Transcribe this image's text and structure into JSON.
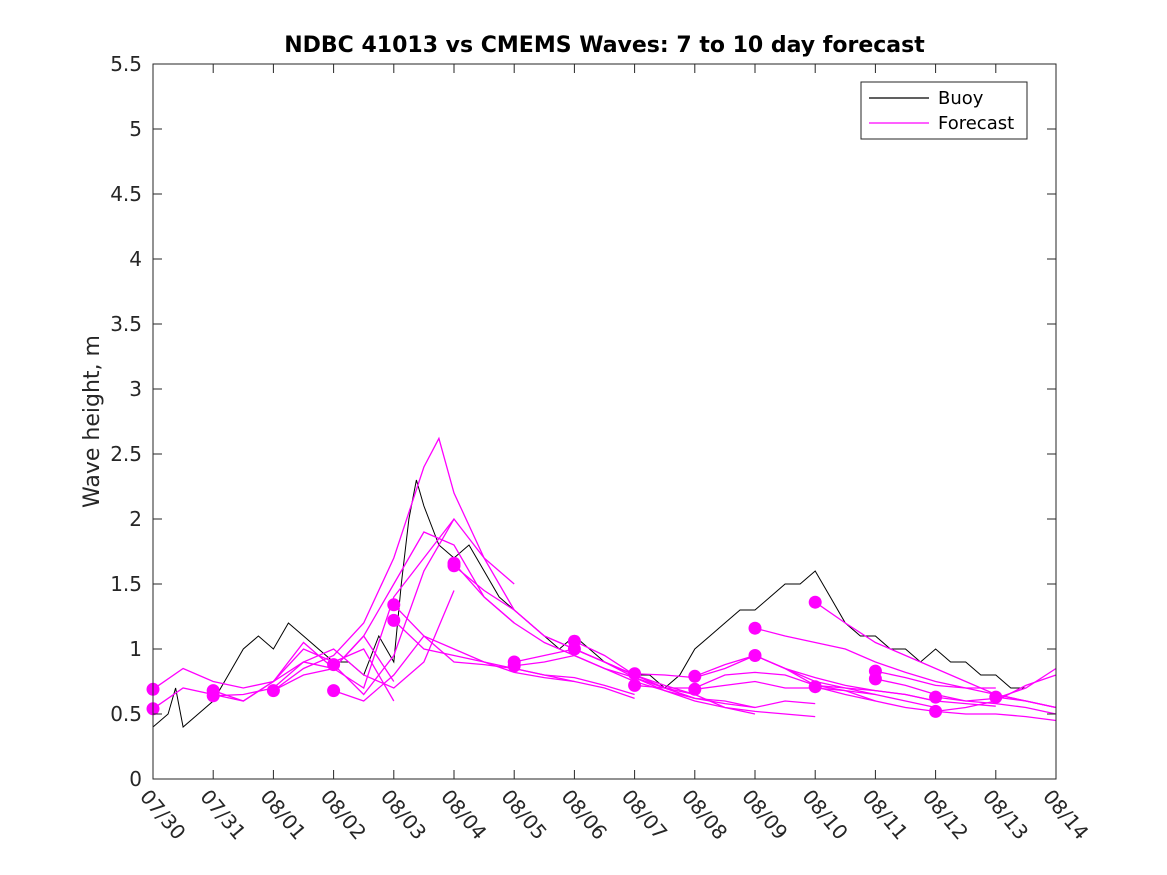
{
  "chart_data": {
    "type": "line",
    "title": "NDBC 41013 vs CMEMS Waves: 7 to 10 day forecast",
    "xlabel": "",
    "ylabel": "Wave height, m",
    "xlim": [
      "07/30",
      "08/14"
    ],
    "ylim": [
      0,
      5.5
    ],
    "x_tick_labels": [
      "07/30",
      "07/31",
      "08/01",
      "08/02",
      "08/03",
      "08/04",
      "08/05",
      "08/06",
      "08/07",
      "08/08",
      "08/09",
      "08/10",
      "08/11",
      "08/12",
      "08/13",
      "08/14"
    ],
    "y_tick_labels": [
      "0",
      "0.5",
      "1",
      "1.5",
      "2",
      "2.5",
      "3",
      "3.5",
      "4",
      "4.5",
      "5",
      "5.5"
    ],
    "y_ticks": [
      0,
      0.5,
      1,
      1.5,
      2,
      2.5,
      3,
      3.5,
      4,
      4.5,
      5,
      5.5
    ],
    "grid": false,
    "legend": {
      "position": "top-right",
      "entries": [
        "Buoy",
        "Forecast"
      ]
    },
    "colors": {
      "buoy": "#000000",
      "forecast": "#ff00ff"
    },
    "series": [
      {
        "name": "Buoy",
        "x": [
          "07/30 00:00",
          "07/30 06:00",
          "07/30 09:00",
          "07/30 12:00",
          "07/30 18:00",
          "07/31 00:00",
          "07/31 06:00",
          "07/31 12:00",
          "07/31 18:00",
          "08/01 00:00",
          "08/01 06:00",
          "08/01 12:00",
          "08/01 18:00",
          "08/02 00:00",
          "08/02 06:00",
          "08/02 12:00",
          "08/02 18:00",
          "08/03 00:00",
          "08/03 03:00",
          "08/03 06:00",
          "08/03 09:00",
          "08/03 12:00",
          "08/03 18:00",
          "08/04 00:00",
          "08/04 06:00",
          "08/04 12:00",
          "08/04 18:00",
          "08/05 00:00",
          "08/05 06:00",
          "08/05 12:00",
          "08/05 18:00",
          "08/06 00:00",
          "08/06 06:00",
          "08/06 12:00",
          "08/06 18:00",
          "08/07 00:00",
          "08/07 06:00",
          "08/07 12:00",
          "08/07 18:00",
          "08/08 00:00",
          "08/08 06:00",
          "08/08 12:00",
          "08/08 18:00",
          "08/09 00:00",
          "08/09 06:00",
          "08/09 12:00",
          "08/09 18:00",
          "08/10 00:00",
          "08/10 06:00",
          "08/10 12:00",
          "08/10 18:00",
          "08/11 00:00",
          "08/11 06:00",
          "08/11 12:00",
          "08/11 18:00",
          "08/12 00:00",
          "08/12 06:00",
          "08/12 12:00",
          "08/12 18:00",
          "08/13 00:00",
          "08/13 06:00",
          "08/13 12:00"
        ],
        "y": [
          0.4,
          0.5,
          0.7,
          0.4,
          0.5,
          0.6,
          0.8,
          1.0,
          1.1,
          1.0,
          1.2,
          1.1,
          1.0,
          0.9,
          0.9,
          0.8,
          1.1,
          0.9,
          1.5,
          2.0,
          2.3,
          2.1,
          1.8,
          1.7,
          1.8,
          1.6,
          1.4,
          1.3,
          1.2,
          1.1,
          1.0,
          1.1,
          1.0,
          0.9,
          0.85,
          0.8,
          0.8,
          0.7,
          0.8,
          1.0,
          1.1,
          1.2,
          1.3,
          1.3,
          1.4,
          1.5,
          1.5,
          1.6,
          1.4,
          1.2,
          1.1,
          1.1,
          1.0,
          1.0,
          0.9,
          1.0,
          0.9,
          0.9,
          0.8,
          0.8,
          0.7,
          0.7
        ]
      },
      {
        "name": "Forecast",
        "runs": [
          {
            "x": [
              "07/30 00:00",
              "07/30 12:00",
              "07/31 00:00",
              "07/31 12:00",
              "08/01 00:00",
              "08/01 12:00",
              "08/02 00:00",
              "08/02 12:00",
              "08/03 00:00"
            ],
            "y": [
              0.69,
              0.85,
              0.75,
              0.7,
              0.75,
              0.9,
              0.85,
              1.1,
              0.75
            ]
          },
          {
            "x": [
              "07/30 00:00",
              "07/30 12:00",
              "07/31 00:00",
              "07/31 12:00",
              "08/01 00:00",
              "08/01 12:00",
              "08/02 00:00",
              "08/02 12:00",
              "08/03 00:00"
            ],
            "y": [
              0.54,
              0.7,
              0.65,
              0.6,
              0.75,
              1.0,
              0.9,
              1.0,
              0.6
            ]
          },
          {
            "x": [
              "07/31 00:00",
              "07/31 12:00",
              "08/01 00:00",
              "08/01 12:00",
              "08/02 00:00",
              "08/02 12:00",
              "08/03 00:00",
              "08/03 12:00",
              "08/04 00:00"
            ],
            "y": [
              0.68,
              0.6,
              0.75,
              1.05,
              0.85,
              0.7,
              1.4,
              1.7,
              2.0
            ]
          },
          {
            "x": [
              "07/31 00:00",
              "07/31 12:00",
              "08/01 00:00",
              "08/01 12:00",
              "08/02 00:00",
              "08/02 12:00",
              "08/03 00:00",
              "08/03 12:00",
              "08/04 00:00"
            ],
            "y": [
              0.64,
              0.65,
              0.7,
              0.9,
              1.0,
              0.8,
              0.7,
              0.9,
              1.45
            ]
          },
          {
            "x": [
              "08/01 00:00",
              "08/01 12:00",
              "08/02 00:00",
              "08/02 12:00",
              "08/03 00:00",
              "08/03 12:00",
              "08/03 18:00",
              "08/04 00:00",
              "08/04 12:00",
              "08/05 00:00"
            ],
            "y": [
              0.68,
              0.85,
              0.95,
              1.2,
              1.7,
              2.4,
              2.62,
              2.2,
              1.7,
              1.5
            ]
          },
          {
            "x": [
              "08/01 00:00",
              "08/01 12:00",
              "08/02 00:00",
              "08/02 12:00",
              "08/03 00:00",
              "08/03 12:00",
              "08/04 00:00",
              "08/04 12:00",
              "08/05 00:00"
            ],
            "y": [
              0.68,
              0.8,
              0.85,
              1.1,
              1.5,
              1.9,
              1.8,
              1.4,
              1.2
            ]
          },
          {
            "x": [
              "08/02 00:00",
              "08/02 12:00",
              "08/03 00:00",
              "08/03 12:00",
              "08/04 00:00",
              "08/04 12:00",
              "08/05 00:00",
              "08/05 12:00",
              "08/06 00:00"
            ],
            "y": [
              0.88,
              0.65,
              0.95,
              1.6,
              2.0,
              1.7,
              1.3,
              1.1,
              1.0
            ]
          },
          {
            "x": [
              "08/02 00:00",
              "08/02 12:00",
              "08/03 00:00",
              "08/03 12:00",
              "08/04 00:00",
              "08/04 12:00",
              "08/05 00:00",
              "08/05 12:00",
              "08/06 00:00"
            ],
            "y": [
              0.68,
              0.6,
              0.8,
              1.1,
              1.0,
              0.9,
              0.85,
              0.8,
              0.75
            ]
          },
          {
            "x": [
              "08/03 00:00",
              "08/03 12:00",
              "08/04 00:00",
              "08/04 12:00",
              "08/05 00:00",
              "08/05 12:00",
              "08/06 00:00",
              "08/06 12:00",
              "08/07 00:00"
            ],
            "y": [
              1.34,
              1.1,
              0.9,
              0.88,
              0.85,
              0.8,
              0.78,
              0.72,
              0.65
            ]
          },
          {
            "x": [
              "08/03 00:00",
              "08/03 12:00",
              "08/04 00:00",
              "08/04 12:00",
              "08/05 00:00",
              "08/05 12:00",
              "08/06 00:00",
              "08/06 12:00",
              "08/07 00:00"
            ],
            "y": [
              1.22,
              1.0,
              0.95,
              0.9,
              0.82,
              0.78,
              0.75,
              0.7,
              0.62
            ]
          },
          {
            "x": [
              "08/04 00:00",
              "08/04 12:00",
              "08/05 00:00",
              "08/05 12:00",
              "08/06 00:00",
              "08/06 12:00",
              "08/07 00:00",
              "08/07 12:00",
              "08/08 00:00"
            ],
            "y": [
              1.66,
              1.4,
              1.2,
              1.05,
              0.95,
              0.85,
              0.78,
              0.7,
              0.62
            ]
          },
          {
            "x": [
              "08/04 00:00",
              "08/04 12:00",
              "08/05 00:00",
              "08/05 12:00",
              "08/06 00:00",
              "08/06 12:00",
              "08/07 00:00",
              "08/07 12:00",
              "08/08 00:00"
            ],
            "y": [
              1.64,
              1.45,
              1.3,
              1.1,
              1.0,
              0.9,
              0.8,
              0.72,
              0.65
            ]
          },
          {
            "x": [
              "08/05 00:00",
              "08/05 12:00",
              "08/06 00:00",
              "08/06 12:00",
              "08/07 00:00",
              "08/07 12:00",
              "08/08 00:00",
              "08/08 12:00",
              "08/09 00:00"
            ],
            "y": [
              0.9,
              0.95,
              1.0,
              0.9,
              0.8,
              0.7,
              0.65,
              0.55,
              0.5
            ]
          },
          {
            "x": [
              "08/05 00:00",
              "08/05 12:00",
              "08/06 00:00",
              "08/06 12:00",
              "08/07 00:00",
              "08/07 12:00",
              "08/08 00:00",
              "08/08 12:00",
              "08/09 00:00"
            ],
            "y": [
              0.87,
              0.9,
              0.95,
              0.85,
              0.75,
              0.68,
              0.62,
              0.6,
              0.55
            ]
          },
          {
            "x": [
              "08/06 00:00",
              "08/06 12:00",
              "08/07 00:00",
              "08/07 12:00",
              "08/08 00:00",
              "08/08 12:00",
              "08/09 00:00",
              "08/09 12:00",
              "08/10 00:00"
            ],
            "y": [
              1.06,
              0.95,
              0.8,
              0.7,
              0.62,
              0.58,
              0.55,
              0.6,
              0.58
            ]
          },
          {
            "x": [
              "08/06 00:00",
              "08/06 12:00",
              "08/07 00:00",
              "08/07 12:00",
              "08/08 00:00",
              "08/08 12:00",
              "08/09 00:00",
              "08/09 12:00",
              "08/10 00:00"
            ],
            "y": [
              1.0,
              0.9,
              0.78,
              0.68,
              0.6,
              0.55,
              0.52,
              0.5,
              0.48
            ]
          },
          {
            "x": [
              "08/07 00:00",
              "08/07 12:00",
              "08/08 00:00",
              "08/08 12:00",
              "08/09 00:00",
              "08/09 12:00",
              "08/10 00:00",
              "08/10 12:00",
              "08/11 00:00"
            ],
            "y": [
              0.81,
              0.8,
              0.78,
              0.85,
              0.95,
              0.85,
              0.75,
              0.7,
              0.65
            ]
          },
          {
            "x": [
              "08/07 00:00",
              "08/07 12:00",
              "08/08 00:00",
              "08/08 12:00",
              "08/09 00:00",
              "08/09 12:00",
              "08/10 00:00",
              "08/10 12:00",
              "08/11 00:00"
            ],
            "y": [
              0.72,
              0.7,
              0.7,
              0.8,
              0.82,
              0.8,
              0.72,
              0.68,
              0.6
            ]
          },
          {
            "x": [
              "08/08 00:00",
              "08/08 12:00",
              "08/09 00:00",
              "08/09 12:00",
              "08/10 00:00",
              "08/10 12:00",
              "08/11 00:00",
              "08/11 12:00",
              "08/12 00:00"
            ],
            "y": [
              0.79,
              0.88,
              0.95,
              0.85,
              0.72,
              0.7,
              0.68,
              0.65,
              0.6
            ]
          },
          {
            "x": [
              "08/08 00:00",
              "08/08 12:00",
              "08/09 00:00",
              "08/09 12:00",
              "08/10 00:00",
              "08/10 12:00",
              "08/11 00:00",
              "08/11 12:00",
              "08/12 00:00"
            ],
            "y": [
              0.69,
              0.72,
              0.75,
              0.7,
              0.7,
              0.68,
              0.65,
              0.6,
              0.55
            ]
          },
          {
            "x": [
              "08/09 00:00",
              "08/09 12:00",
              "08/10 00:00",
              "08/10 12:00",
              "08/11 00:00",
              "08/11 12:00",
              "08/12 00:00",
              "08/12 12:00",
              "08/13 00:00"
            ],
            "y": [
              1.16,
              1.1,
              1.05,
              1.0,
              0.9,
              0.82,
              0.75,
              0.7,
              0.7
            ]
          },
          {
            "x": [
              "08/09 00:00",
              "08/09 12:00",
              "08/10 00:00",
              "08/10 12:00",
              "08/11 00:00",
              "08/11 12:00",
              "08/12 00:00",
              "08/12 12:00",
              "08/13 00:00"
            ],
            "y": [
              0.95,
              0.85,
              0.78,
              0.72,
              0.68,
              0.65,
              0.6,
              0.58,
              0.56
            ]
          },
          {
            "x": [
              "08/10 00:00",
              "08/10 12:00",
              "08/11 00:00",
              "08/11 12:00",
              "08/12 00:00",
              "08/12 12:00",
              "08/13 00:00",
              "08/13 12:00",
              "08/14 00:00"
            ],
            "y": [
              1.36,
              1.2,
              1.05,
              0.95,
              0.85,
              0.75,
              0.65,
              0.6,
              0.55
            ]
          },
          {
            "x": [
              "08/10 00:00",
              "08/10 12:00",
              "08/11 00:00",
              "08/11 12:00",
              "08/12 00:00",
              "08/12 12:00",
              "08/13 00:00",
              "08/13 12:00",
              "08/14 00:00"
            ],
            "y": [
              0.71,
              0.65,
              0.6,
              0.55,
              0.52,
              0.5,
              0.5,
              0.48,
              0.45
            ]
          },
          {
            "x": [
              "08/11 00:00",
              "08/11 12:00",
              "08/12 00:00",
              "08/12 12:00",
              "08/13 00:00",
              "08/13 12:00",
              "08/14 00:00"
            ],
            "y": [
              0.83,
              0.78,
              0.72,
              0.7,
              0.65,
              0.6,
              0.55
            ]
          },
          {
            "x": [
              "08/11 00:00",
              "08/11 12:00",
              "08/12 00:00",
              "08/12 12:00",
              "08/13 00:00",
              "08/13 12:00",
              "08/14 00:00"
            ],
            "y": [
              0.77,
              0.72,
              0.65,
              0.6,
              0.58,
              0.55,
              0.5
            ]
          },
          {
            "x": [
              "08/12 00:00",
              "08/12 12:00",
              "08/13 00:00",
              "08/13 12:00",
              "08/14 00:00"
            ],
            "y": [
              0.63,
              0.6,
              0.62,
              0.7,
              0.85
            ]
          },
          {
            "x": [
              "08/12 00:00",
              "08/12 12:00",
              "08/13 00:00",
              "08/13 12:00",
              "08/14 00:00"
            ],
            "y": [
              0.52,
              0.55,
              0.6,
              0.72,
              0.8
            ]
          },
          {
            "x": [
              "08/13 00:00",
              "08/13 12:00",
              "08/14 00:00"
            ],
            "y": [
              0.63,
              0.6,
              0.55
            ]
          }
        ],
        "markers": {
          "x": [
            "07/30 00:00",
            "07/30 00:00",
            "07/31 00:00",
            "07/31 00:00",
            "08/01 00:00",
            "08/02 00:00",
            "08/02 00:00",
            "08/03 00:00",
            "08/03 00:00",
            "08/04 00:00",
            "08/04 00:00",
            "08/05 00:00",
            "08/05 00:00",
            "08/06 00:00",
            "08/06 00:00",
            "08/07 00:00",
            "08/07 00:00",
            "08/08 00:00",
            "08/08 00:00",
            "08/09 00:00",
            "08/09 00:00",
            "08/10 00:00",
            "08/10 00:00",
            "08/11 00:00",
            "08/11 00:00",
            "08/12 00:00",
            "08/12 00:00",
            "08/13 00:00"
          ],
          "y": [
            0.69,
            0.54,
            0.68,
            0.64,
            0.68,
            0.88,
            0.68,
            1.34,
            1.22,
            1.66,
            1.64,
            0.9,
            0.87,
            1.06,
            1.0,
            0.81,
            0.72,
            0.79,
            0.69,
            1.16,
            0.95,
            1.36,
            0.71,
            0.83,
            0.77,
            0.63,
            0.52,
            0.63
          ]
        }
      }
    ]
  }
}
